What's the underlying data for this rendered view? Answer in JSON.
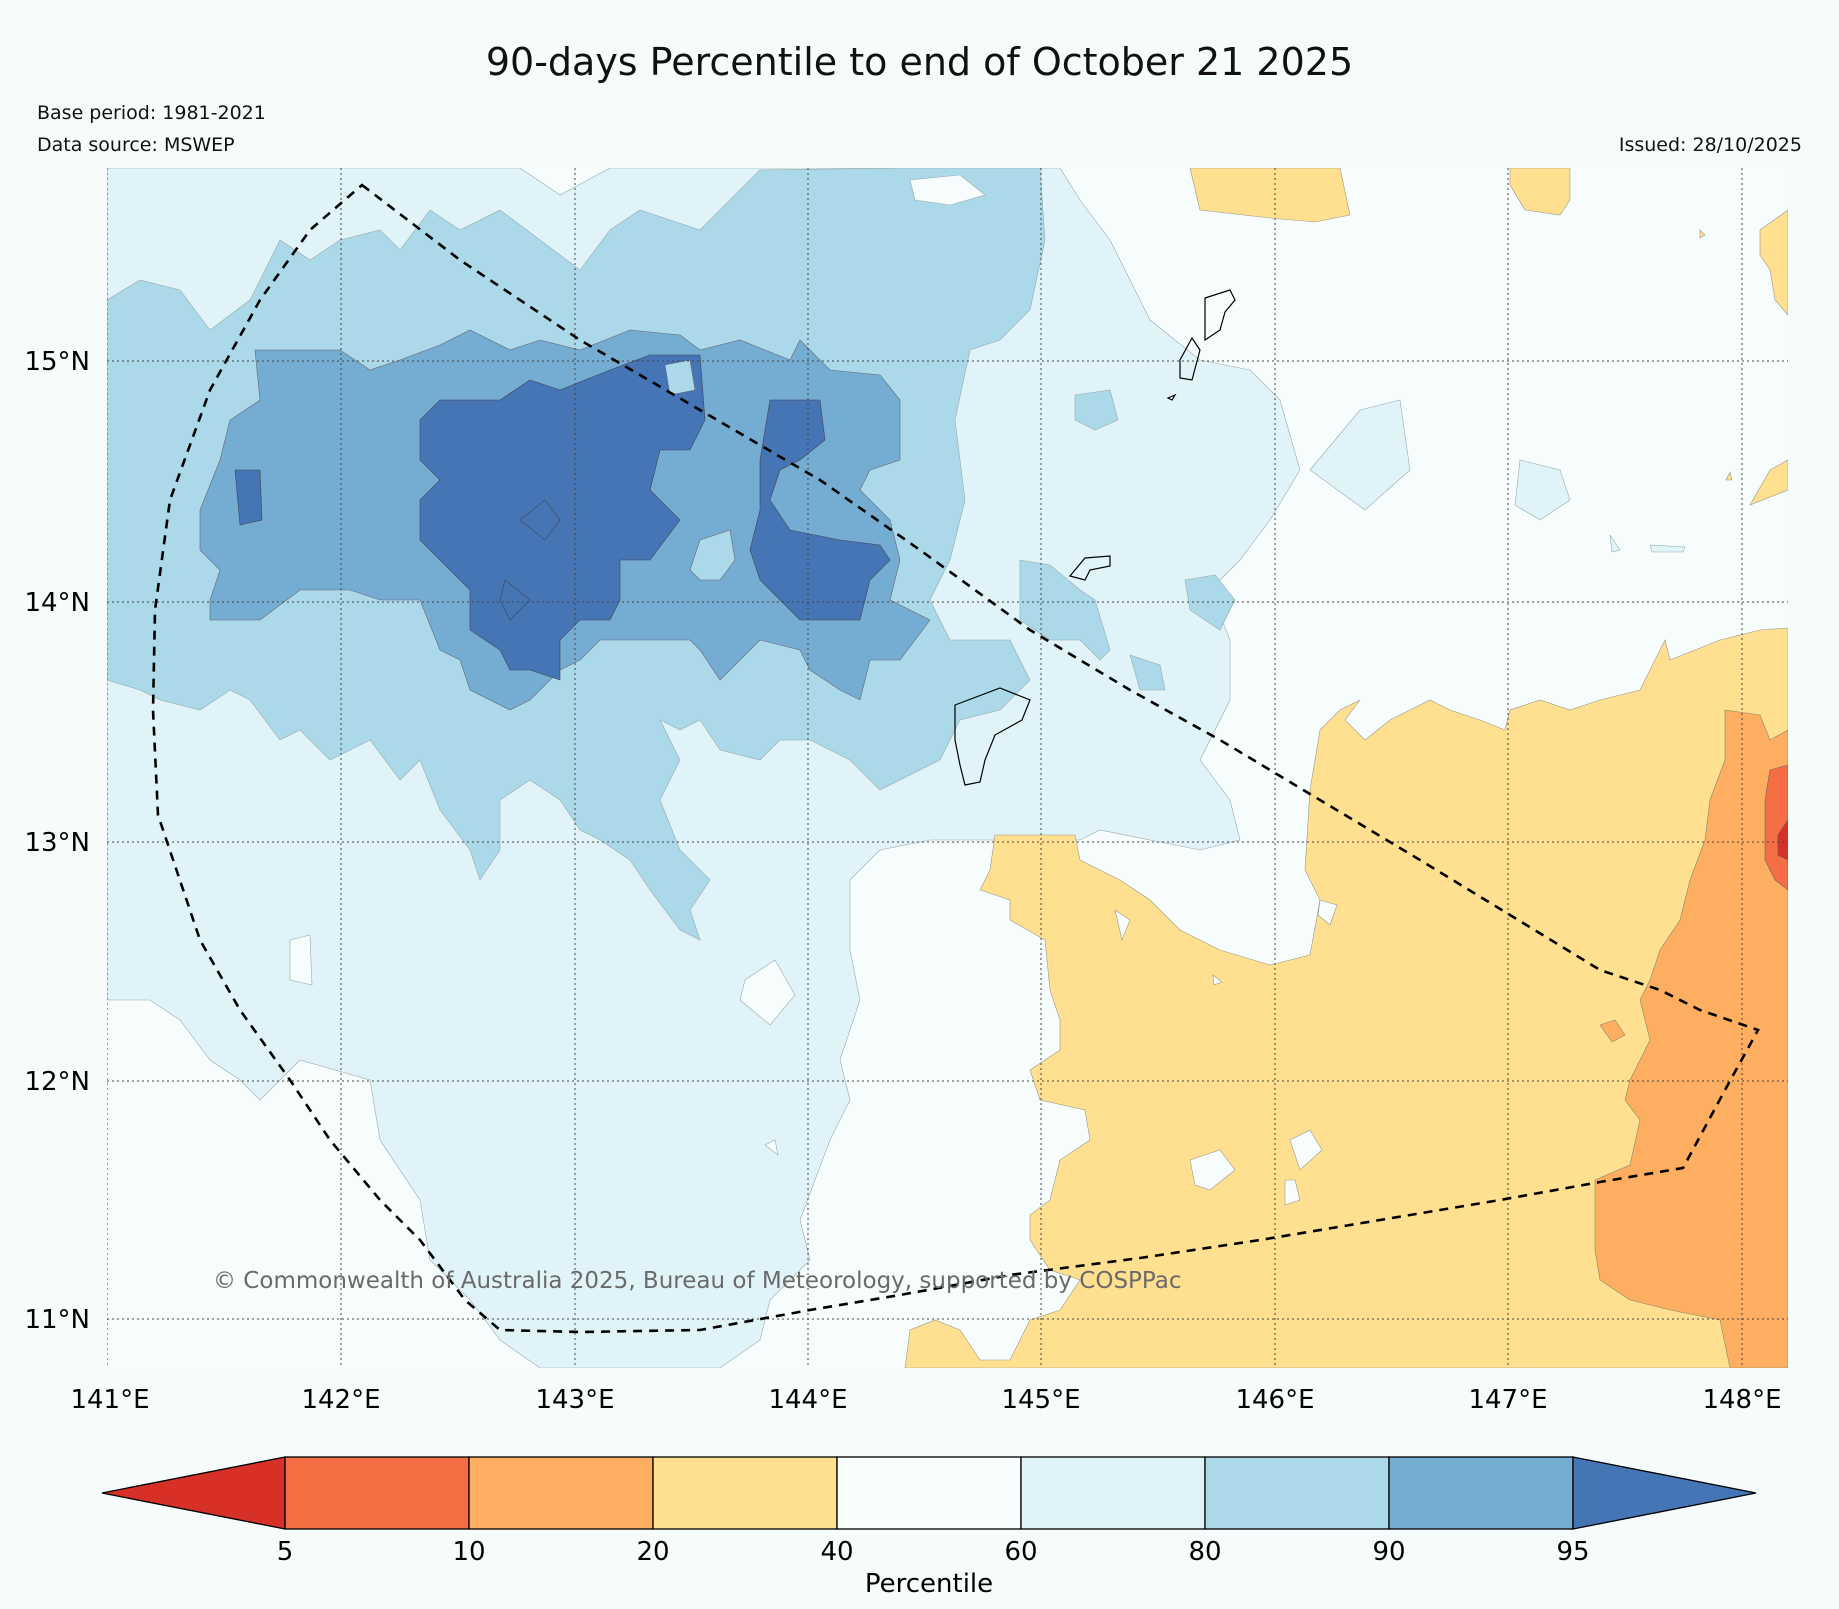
{
  "title": "90-days Percentile to end of October 21 2025",
  "base_period": "Base period: 1981-2021",
  "data_source": "Data source: MSWEP",
  "issued": "Issued: 28/10/2025",
  "copyright": "© Commonwealth of Australia 2025, Bureau of Meteorology, supported by COSPPac",
  "lat_labels": [
    "15°N",
    "14°N",
    "13°N",
    "12°N",
    "11°N"
  ],
  "lon_labels": [
    "141°E",
    "142°E",
    "143°E",
    "144°E",
    "145°E",
    "146°E",
    "147°E",
    "148°E"
  ],
  "colorbar": {
    "label": "Percentile",
    "ticks": [
      "5",
      "10",
      "20",
      "40",
      "60",
      "80",
      "90",
      "95"
    ],
    "colors": [
      "#d73027",
      "#f46d43",
      "#fdae61",
      "#fee090",
      "#f7fcfc",
      "#e0f3f8",
      "#abd9e9",
      "#74add1",
      "#4575b4"
    ]
  }
}
